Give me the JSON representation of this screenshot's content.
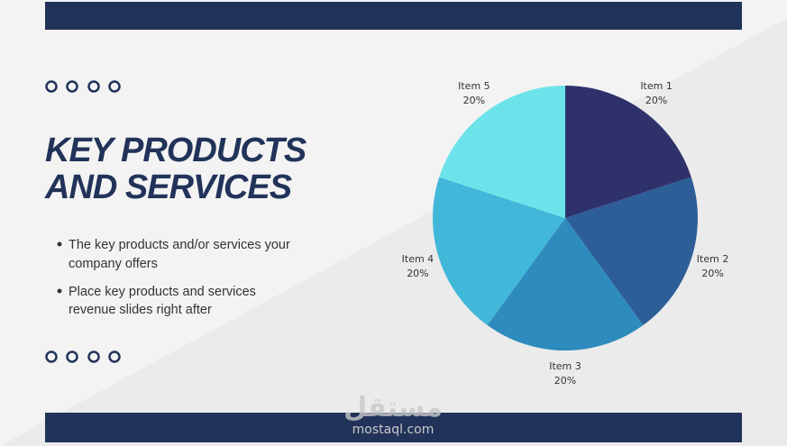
{
  "slide": {
    "title_lines": [
      "KEY PRODUCTS",
      "AND SERVICES"
    ],
    "bullets": [
      [
        "The key products and/or services your",
        "company offers"
      ],
      [
        "Place key products and services",
        "revenue slides right after"
      ]
    ],
    "watermark": {
      "arabic": "مستقل",
      "site": "mostaql.com"
    }
  },
  "chart_data": {
    "type": "pie",
    "categories": [
      "Item 1",
      "Item 2",
      "Item 3",
      "Item 4",
      "Item 5"
    ],
    "values": [
      20,
      20,
      20,
      20,
      20
    ],
    "value_labels": [
      "20%",
      "20%",
      "20%",
      "20%",
      "20%"
    ],
    "colors": [
      "#2f316a",
      "#2d5e98",
      "#2e8bbd",
      "#41b7d9",
      "#6ce3ea"
    ]
  }
}
